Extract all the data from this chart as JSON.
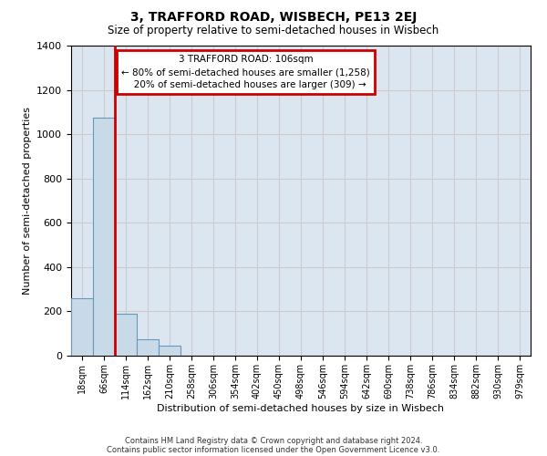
{
  "title": "3, TRAFFORD ROAD, WISBECH, PE13 2EJ",
  "subtitle": "Size of property relative to semi-detached houses in Wisbech",
  "xlabel": "Distribution of semi-detached houses by size in Wisbech",
  "ylabel": "Number of semi-detached properties",
  "bin_labels": [
    "18sqm",
    "66sqm",
    "114sqm",
    "162sqm",
    "210sqm",
    "258sqm",
    "306sqm",
    "354sqm",
    "402sqm",
    "450sqm",
    "498sqm",
    "546sqm",
    "594sqm",
    "642sqm",
    "690sqm",
    "738sqm",
    "786sqm",
    "834sqm",
    "882sqm",
    "930sqm",
    "979sqm"
  ],
  "bar_heights": [
    260,
    1075,
    190,
    75,
    45,
    0,
    0,
    0,
    0,
    0,
    0,
    0,
    0,
    0,
    0,
    0,
    0,
    0,
    0,
    0,
    0
  ],
  "bar_color": "#c8d9e8",
  "bar_edge_color": "#6699bb",
  "grid_color": "#cccccc",
  "background_color": "#dce6f0",
  "red_line_x": 1.52,
  "red_line_color": "#cc0000",
  "annotation_line1": "3 TRAFFORD ROAD: 106sqm",
  "annotation_line2": "← 80% of semi-detached houses are smaller (1,258)",
  "annotation_line3": "   20% of semi-detached houses are larger (309) →",
  "annotation_box_color": "#cc0000",
  "ylim": [
    0,
    1400
  ],
  "yticks": [
    0,
    200,
    400,
    600,
    800,
    1000,
    1200,
    1400
  ],
  "footer_line1": "Contains HM Land Registry data © Crown copyright and database right 2024.",
  "footer_line2": "Contains public sector information licensed under the Open Government Licence v3.0."
}
